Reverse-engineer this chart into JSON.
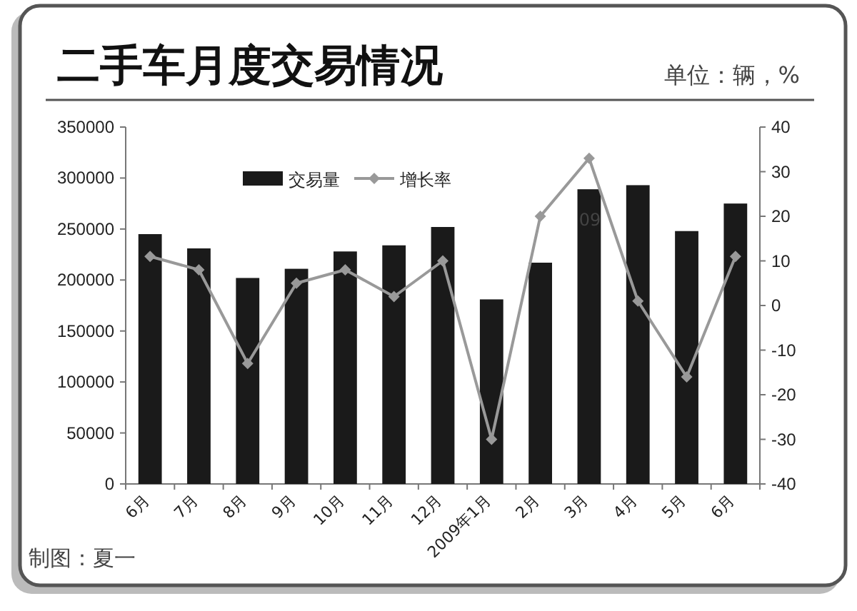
{
  "chart_data": {
    "type": "bar",
    "title": "二手车月度交易情况",
    "categories": [
      "6月",
      "7月",
      "8月",
      "9月",
      "10月",
      "11月",
      "12月",
      "2009年1月",
      "2月",
      "3月",
      "4月",
      "5月",
      "6月"
    ],
    "series": [
      {
        "name": "交易量",
        "color": "#1a1a1a",
        "values": [
          245000,
          231000,
          202000,
          211000,
          228000,
          234000,
          252000,
          181000,
          217000,
          289000,
          293000,
          248000,
          275000
        ]
      },
      {
        "name": "增长率",
        "type": "line",
        "axis": "y2",
        "color": "#999999",
        "marker": "diamond",
        "values": [
          11,
          8,
          -13,
          5,
          8,
          2,
          10,
          -30,
          20,
          33,
          1,
          -16,
          11
        ]
      }
    ],
    "ylim": [
      0,
      350000
    ],
    "yticks": [
      0,
      50000,
      100000,
      150000,
      200000,
      250000,
      300000,
      350000
    ],
    "y2lim": [
      -40,
      40
    ],
    "y2ticks": [
      -40,
      -30,
      -20,
      -10,
      0,
      10,
      20,
      30,
      40
    ],
    "grid": false,
    "legend": "top",
    "annotations": [
      "单位：辆，%",
      "制图：夏一",
      "09"
    ]
  }
}
